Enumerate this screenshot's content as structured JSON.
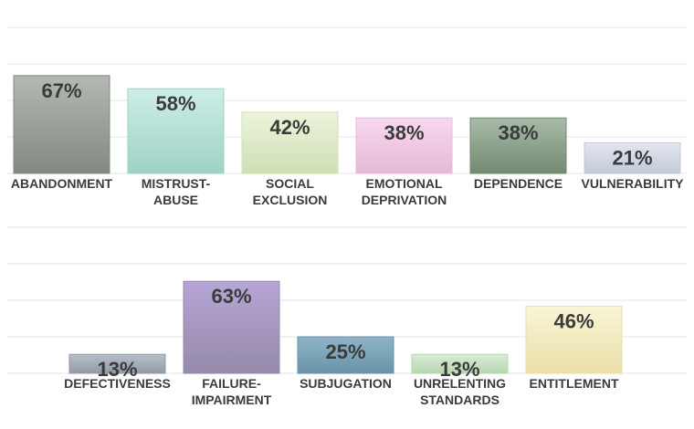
{
  "chart_data": [
    {
      "type": "bar",
      "categories": [
        [
          "ABANDONMENT"
        ],
        [
          "MISTRUST-",
          "ABUSE"
        ],
        [
          "SOCIAL",
          "EXCLUSION"
        ],
        [
          "EMOTIONAL",
          "DEPRIVATION"
        ],
        [
          "DEPENDENCE"
        ],
        [
          "VULNERABILITY"
        ]
      ],
      "values": [
        67,
        58,
        42,
        38,
        38,
        21
      ],
      "value_labels": [
        "67%",
        "58%",
        "42%",
        "38%",
        "38%",
        "21%"
      ],
      "ylim": [
        0,
        100
      ],
      "grid": true,
      "colors": [
        [
          "#b3b8b2",
          "#838a82"
        ],
        [
          "#cdeee6",
          "#9fd2c4"
        ],
        [
          "#ecf4db",
          "#cfe0b4"
        ],
        [
          "#f8d8ef",
          "#e7b8d9"
        ],
        [
          "#a9bba8",
          "#728a71"
        ],
        [
          "#e2e6ef",
          "#c3cad8"
        ]
      ]
    },
    {
      "type": "bar",
      "categories": [
        [
          "DEFECTIVENESS"
        ],
        [
          "FAILURE-",
          "IMPAIRMENT"
        ],
        [
          "SUBJUGATION"
        ],
        [
          "UNRELENTING",
          "STANDARDS"
        ],
        [
          "ENTITLEMENT"
        ]
      ],
      "values": [
        13,
        63,
        25,
        13,
        46
      ],
      "value_labels": [
        "13%",
        "63%",
        "25%",
        "13%",
        "46%"
      ],
      "ylim": [
        0,
        100
      ],
      "grid": true,
      "colors": [
        [
          "#b7bfc9",
          "#919aa6"
        ],
        [
          "#b6a5d6",
          "#958aa9"
        ],
        [
          "#8fb4c7",
          "#6a93a8"
        ],
        [
          "#d8ecd4",
          "#b8d6b2"
        ],
        [
          "#f9f5d6",
          "#eadfa9"
        ]
      ]
    }
  ]
}
